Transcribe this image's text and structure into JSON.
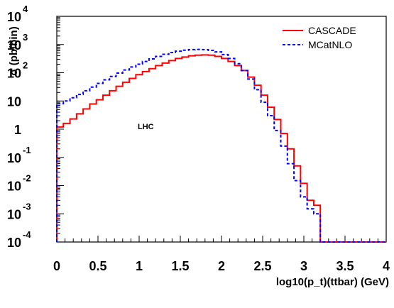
{
  "chart_data": {
    "type": "line",
    "step": true,
    "title": "",
    "xlabel": "log10(p_t)(ttbar) (GeV)",
    "ylabel": "σ (pb/bin)",
    "xlim": [
      0,
      4
    ],
    "ylim": [
      0.0001,
      10000
    ],
    "ylog": true,
    "x_ticks": [
      "0",
      "0.5",
      "1",
      "1.5",
      "2",
      "2.5",
      "3",
      "3.5",
      "4"
    ],
    "y_ticks": [
      {
        "base": "10",
        "exp": "-4"
      },
      {
        "base": "10",
        "exp": "-3"
      },
      {
        "base": "10",
        "exp": "-2"
      },
      {
        "base": "10",
        "exp": "-1"
      },
      {
        "base": "1",
        "exp": ""
      },
      {
        "base": "10",
        "exp": ""
      },
      {
        "base": "10",
        "exp": "2"
      },
      {
        "base": "10",
        "exp": "3"
      },
      {
        "base": "10",
        "exp": "4"
      }
    ],
    "annotation": "LHC",
    "legend_position": "top-right",
    "bin_width": 0.08,
    "series": [
      {
        "name": "CASCADE",
        "color": "#ff0000",
        "style": "solid",
        "values": [
          1.2,
          1.6,
          2.3,
          3.5,
          5.2,
          7.8,
          11,
          16,
          23,
          33,
          46,
          63,
          85,
          110,
          140,
          180,
          220,
          270,
          320,
          360,
          400,
          420,
          430,
          420,
          380,
          320,
          250,
          180,
          120,
          70,
          36,
          16,
          6,
          2.2,
          0.7,
          0.2,
          0.05,
          0.012,
          0.003,
          0.002,
          0.0001
        ]
      },
      {
        "name": "MCatNLO",
        "color": "#0000ff",
        "style": "dashed",
        "values": [
          8,
          10,
          13,
          17,
          23,
          31,
          42,
          56,
          74,
          97,
          125,
          160,
          200,
          250,
          310,
          380,
          450,
          520,
          580,
          630,
          660,
          670,
          660,
          620,
          550,
          440,
          320,
          210,
          120,
          60,
          25,
          9,
          3,
          0.9,
          0.25,
          0.06,
          0.015,
          0.004,
          0.0015,
          0.001,
          0.0001
        ]
      }
    ]
  }
}
